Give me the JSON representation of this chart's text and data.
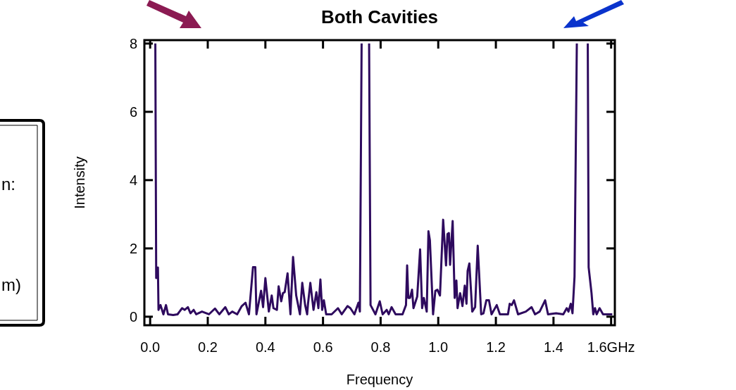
{
  "chart_data": {
    "type": "line",
    "title": "Both Cavities",
    "xlabel": "Frequency",
    "ylabel": "Intensity",
    "xlim": [
      -0.02,
      1.613
    ],
    "ylim": [
      -0.25,
      8.1
    ],
    "xticks": [
      {
        "value": 0,
        "label": "0.0"
      },
      {
        "value": 0.2,
        "label": "0.2"
      },
      {
        "value": 0.4,
        "label": "0.4"
      },
      {
        "value": 0.6,
        "label": "0.6"
      },
      {
        "value": 0.8,
        "label": "0.8"
      },
      {
        "value": 1.0,
        "label": "1.0"
      },
      {
        "value": 1.2,
        "label": "1.2"
      },
      {
        "value": 1.4,
        "label": "1.4"
      },
      {
        "value": 1.6,
        "label": "1.6GHz"
      }
    ],
    "yticks": [
      0,
      2,
      4,
      6,
      8
    ],
    "annotations": [
      "n:",
      "m)"
    ],
    "series": [
      {
        "color": "#2e0a5e",
        "x": [
          0.018,
          0.021,
          0.027,
          0.029,
          0.036,
          0.046,
          0.055,
          0.062,
          0.08,
          0.095,
          0.111,
          0.12,
          0.131,
          0.14,
          0.151,
          0.16,
          0.18,
          0.204,
          0.225,
          0.24,
          0.261,
          0.273,
          0.285,
          0.302,
          0.318,
          0.331,
          0.343,
          0.357,
          0.365,
          0.369,
          0.385,
          0.392,
          0.4,
          0.412,
          0.422,
          0.428,
          0.44,
          0.446,
          0.455,
          0.461,
          0.467,
          0.477,
          0.487,
          0.496,
          0.507,
          0.52,
          0.528,
          0.538,
          0.545,
          0.548,
          0.556,
          0.567,
          0.577,
          0.584,
          0.591,
          0.597,
          0.603,
          0.611,
          0.63,
          0.652,
          0.665,
          0.685,
          0.695,
          0.709,
          0.723,
          0.728,
          0.734,
          0.748,
          0.76,
          0.765,
          0.782,
          0.797,
          0.807,
          0.821,
          0.828,
          0.838,
          0.852,
          0.876,
          0.888,
          0.892,
          0.896,
          0.902,
          0.909,
          0.914,
          0.927,
          0.937,
          0.944,
          0.95,
          0.96,
          0.966,
          0.971,
          0.982,
          0.99,
          0.997,
          1.006,
          1.017,
          1.027,
          1.032,
          1.037,
          1.041,
          1.05,
          1.057,
          1.063,
          1.067,
          1.076,
          1.084,
          1.092,
          1.098,
          1.102,
          1.108,
          1.118,
          1.128,
          1.137,
          1.149,
          1.157,
          1.167,
          1.176,
          1.185,
          1.203,
          1.214,
          1.242,
          1.248,
          1.255,
          1.263,
          1.277,
          1.304,
          1.324,
          1.336,
          1.352,
          1.371,
          1.381,
          1.409,
          1.434,
          1.446,
          1.452,
          1.46,
          1.466,
          1.473,
          1.481,
          1.5,
          1.519,
          1.522,
          1.532,
          1.538,
          1.544,
          1.55,
          1.56,
          1.572,
          1.604
        ],
        "values": [
          8,
          1.13,
          1.44,
          0.2,
          0.34,
          0.07,
          0.34,
          0.07,
          0.05,
          0.07,
          0.25,
          0.2,
          0.28,
          0.1,
          0.2,
          0.07,
          0.15,
          0.07,
          0.24,
          0.07,
          0.28,
          0.07,
          0.15,
          0.07,
          0.31,
          0.41,
          0.07,
          1.45,
          1.45,
          0.07,
          0.76,
          0.28,
          1.13,
          0.15,
          0.62,
          0.25,
          0.2,
          0.89,
          0.45,
          0.69,
          0.72,
          1.27,
          0.07,
          1.75,
          0.62,
          0.07,
          0.99,
          0.34,
          0.07,
          0.38,
          0.99,
          0.2,
          0.72,
          0.25,
          1.09,
          0.2,
          0.48,
          0.07,
          0.07,
          0.25,
          0.07,
          0.31,
          0.25,
          0.07,
          0.41,
          0.15,
          8,
          null,
          8,
          0.34,
          0.07,
          0.45,
          0.07,
          0.2,
          0.07,
          0.28,
          0.07,
          0.07,
          0.34,
          1.5,
          0.55,
          0.55,
          0.79,
          0.25,
          0.59,
          1.97,
          0.25,
          0.55,
          0.15,
          2.5,
          2.24,
          0.07,
          0.76,
          0.79,
          0.62,
          2.84,
          1.5,
          2.42,
          2.45,
          1.52,
          2.8,
          0.55,
          1.06,
          0.25,
          0.69,
          0.31,
          0.91,
          0.38,
          1.34,
          1.56,
          0.15,
          0.28,
          2.08,
          0.07,
          0.1,
          0.48,
          0.48,
          0.07,
          0.34,
          0.07,
          0.07,
          0.38,
          0.34,
          0.48,
          0.07,
          0.15,
          0.28,
          0.07,
          0.15,
          0.48,
          0.07,
          0.1,
          0.07,
          0.25,
          0.15,
          0.38,
          0.1,
          1.17,
          8,
          null,
          8,
          1.45,
          0.69,
          0.07,
          0.25,
          0.07,
          0.25,
          0.07,
          0.07
        ]
      }
    ]
  }
}
